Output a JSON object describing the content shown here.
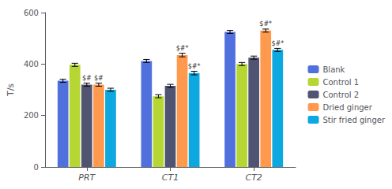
{
  "chart_data": {
    "type": "bar",
    "categories": [
      "PRT",
      "CT1",
      "CT2"
    ],
    "series": [
      {
        "name": "Blank",
        "values": [
          335,
          412,
          525
        ],
        "errors": [
          6,
          6,
          6
        ],
        "annotations": [
          null,
          null,
          null
        ]
      },
      {
        "name": "Control 1",
        "values": [
          397,
          275,
          400
        ],
        "errors": [
          6,
          6,
          6
        ],
        "annotations": [
          null,
          null,
          null
        ]
      },
      {
        "name": "Control 2",
        "values": [
          320,
          315,
          425
        ],
        "errors": [
          6,
          6,
          6
        ],
        "annotations": [
          "$#",
          null,
          null
        ]
      },
      {
        "name": "Dried ginger",
        "values": [
          320,
          435,
          530
        ],
        "errors": [
          6,
          7,
          6
        ],
        "annotations": [
          "$#",
          "$#*",
          "$#*"
        ]
      },
      {
        "name": "Stir fried ginger",
        "values": [
          300,
          365,
          455
        ],
        "errors": [
          6,
          7,
          6
        ],
        "annotations": [
          null,
          "$#*",
          "$#*"
        ]
      }
    ],
    "ylabel": "T/s",
    "ylim": [
      0,
      600
    ],
    "yticks": [
      0,
      200,
      400,
      600
    ],
    "grid": false,
    "legend": "right"
  }
}
